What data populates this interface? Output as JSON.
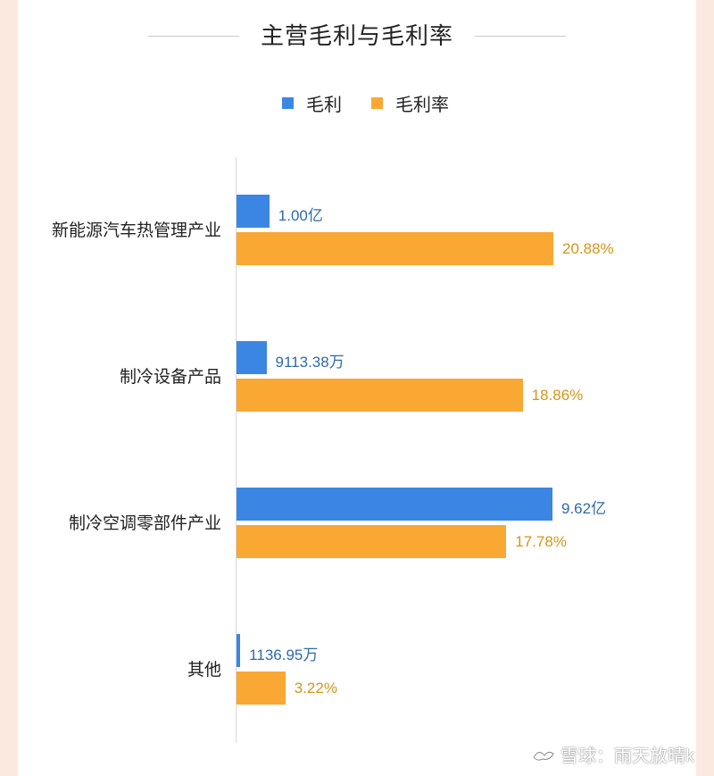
{
  "chart_data": {
    "type": "bar",
    "orientation": "horizontal",
    "title": "主营毛利与毛利率",
    "categories": [
      "新能源汽车热管理产业",
      "制冷设备产品",
      "制冷空调零部件产业",
      "其他"
    ],
    "series": [
      {
        "name": "毛利",
        "color": "#3b86e3",
        "values_yuan": [
          100000000,
          91133800,
          962000000,
          11369500
        ],
        "labels": [
          "1.00亿",
          "9113.38万",
          "9.62亿",
          "1136.95万"
        ]
      },
      {
        "name": "毛利率",
        "color": "#f9a833",
        "values_percent": [
          20.88,
          18.86,
          17.78,
          3.22
        ],
        "labels": [
          "20.88%",
          "18.86%",
          "17.78%",
          "3.22%"
        ]
      }
    ],
    "legend_position": "top",
    "grid": false
  },
  "watermark": "雪球：雨天放晴k"
}
